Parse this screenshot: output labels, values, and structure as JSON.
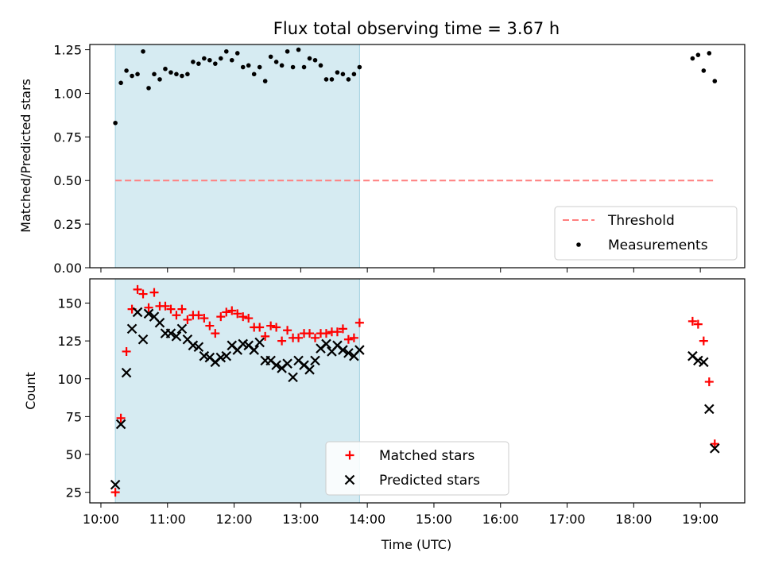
{
  "chart_data": [
    {
      "type": "scatter",
      "title": "Flux total observing time = 3.67 h",
      "xlabel": "",
      "ylabel": "Matched/Predicted stars",
      "ylim": [
        0,
        1.28
      ],
      "yticks": [
        "0.00",
        "0.25",
        "0.50",
        "0.75",
        "1.00",
        "1.25"
      ],
      "ytick_values": [
        0,
        0.25,
        0.5,
        0.75,
        1.0,
        1.25
      ],
      "shaded_span": [
        "10:13",
        "13:53"
      ],
      "threshold": {
        "name": "Threshold",
        "y": 0.5,
        "x_start": "10:13",
        "x_end": "19:13",
        "color": "#ff7f7f"
      },
      "legend_position": "lower right",
      "series": [
        {
          "name": "Measurements",
          "color": "#000000",
          "x": [
            "10:13",
            "10:18",
            "10:23",
            "10:28",
            "10:33",
            "10:38",
            "10:43",
            "10:48",
            "10:53",
            "10:58",
            "11:03",
            "11:08",
            "11:13",
            "11:18",
            "11:23",
            "11:28",
            "11:33",
            "11:38",
            "11:43",
            "11:48",
            "11:53",
            "11:58",
            "12:03",
            "12:08",
            "12:13",
            "12:18",
            "12:23",
            "12:28",
            "12:33",
            "12:38",
            "12:43",
            "12:48",
            "12:53",
            "12:58",
            "13:03",
            "13:08",
            "13:13",
            "13:18",
            "13:23",
            "13:28",
            "13:33",
            "13:38",
            "13:43",
            "13:48",
            "13:53",
            "18:53",
            "18:58",
            "19:03",
            "19:08",
            "19:13"
          ],
          "y": [
            0.83,
            1.06,
            1.13,
            1.1,
            1.11,
            1.24,
            1.03,
            1.11,
            1.08,
            1.14,
            1.12,
            1.11,
            1.1,
            1.11,
            1.18,
            1.17,
            1.2,
            1.19,
            1.17,
            1.2,
            1.24,
            1.19,
            1.23,
            1.15,
            1.16,
            1.11,
            1.15,
            1.07,
            1.21,
            1.18,
            1.16,
            1.24,
            1.15,
            1.25,
            1.15,
            1.2,
            1.19,
            1.16,
            1.08,
            1.08,
            1.12,
            1.11,
            1.08,
            1.11,
            1.15,
            1.2,
            1.22,
            1.13,
            1.23,
            1.07
          ]
        }
      ]
    },
    {
      "type": "scatter",
      "title": "",
      "xlabel": "Time (UTC)",
      "ylabel": "Count",
      "ylim": [
        18,
        166
      ],
      "yticks": [
        "25",
        "50",
        "75",
        "100",
        "125",
        "150"
      ],
      "ytick_values": [
        25,
        50,
        75,
        100,
        125,
        150
      ],
      "xlim": [
        "09:50",
        "19:40"
      ],
      "xticks": [
        "10:00",
        "11:00",
        "12:00",
        "13:00",
        "14:00",
        "15:00",
        "16:00",
        "17:00",
        "18:00",
        "19:00"
      ],
      "shaded_span": [
        "10:13",
        "13:53"
      ],
      "legend_position": "lower center",
      "series": [
        {
          "name": "Matched stars",
          "marker": "plus",
          "color": "#ff0000",
          "x": [
            "10:13",
            "10:18",
            "10:23",
            "10:28",
            "10:33",
            "10:38",
            "10:43",
            "10:48",
            "10:53",
            "10:58",
            "11:03",
            "11:08",
            "11:13",
            "11:18",
            "11:23",
            "11:28",
            "11:33",
            "11:38",
            "11:43",
            "11:48",
            "11:53",
            "11:58",
            "12:03",
            "12:08",
            "12:13",
            "12:18",
            "12:23",
            "12:28",
            "12:33",
            "12:38",
            "12:43",
            "12:48",
            "12:53",
            "12:58",
            "13:03",
            "13:08",
            "13:13",
            "13:18",
            "13:23",
            "13:28",
            "13:33",
            "13:38",
            "13:43",
            "13:48",
            "13:53",
            "18:53",
            "18:58",
            "19:03",
            "19:08",
            "19:13"
          ],
          "y": [
            25,
            74,
            118,
            146,
            159,
            156,
            147,
            157,
            148,
            148,
            146,
            142,
            146,
            139,
            142,
            142,
            140,
            135,
            130,
            141,
            144,
            145,
            143,
            141,
            140,
            134,
            134,
            128,
            135,
            134,
            125,
            132,
            127,
            127,
            130,
            130,
            127,
            130,
            130,
            131,
            131,
            133,
            126,
            127,
            137,
            138,
            136,
            125,
            98,
            57
          ]
        },
        {
          "name": "Predicted stars",
          "marker": "x",
          "color": "#000000",
          "x": [
            "10:13",
            "10:18",
            "10:23",
            "10:28",
            "10:33",
            "10:38",
            "10:43",
            "10:48",
            "10:53",
            "10:58",
            "11:03",
            "11:08",
            "11:13",
            "11:18",
            "11:23",
            "11:28",
            "11:33",
            "11:38",
            "11:43",
            "11:48",
            "11:53",
            "11:58",
            "12:03",
            "12:08",
            "12:13",
            "12:18",
            "12:23",
            "12:28",
            "12:33",
            "12:38",
            "12:43",
            "12:48",
            "12:53",
            "12:58",
            "13:03",
            "13:08",
            "13:13",
            "13:18",
            "13:23",
            "13:28",
            "13:33",
            "13:38",
            "13:43",
            "13:48",
            "13:53",
            "18:53",
            "18:58",
            "19:03",
            "19:08",
            "19:13"
          ],
          "y": [
            30,
            70,
            104,
            133,
            144,
            126,
            143,
            141,
            137,
            130,
            130,
            128,
            133,
            126,
            122,
            121,
            115,
            114,
            111,
            114,
            115,
            122,
            119,
            123,
            122,
            119,
            124,
            112,
            112,
            109,
            107,
            110,
            101,
            112,
            109,
            106,
            112,
            120,
            123,
            118,
            122,
            119,
            117,
            115,
            119,
            115,
            112,
            111,
            80,
            54
          ]
        }
      ]
    }
  ]
}
